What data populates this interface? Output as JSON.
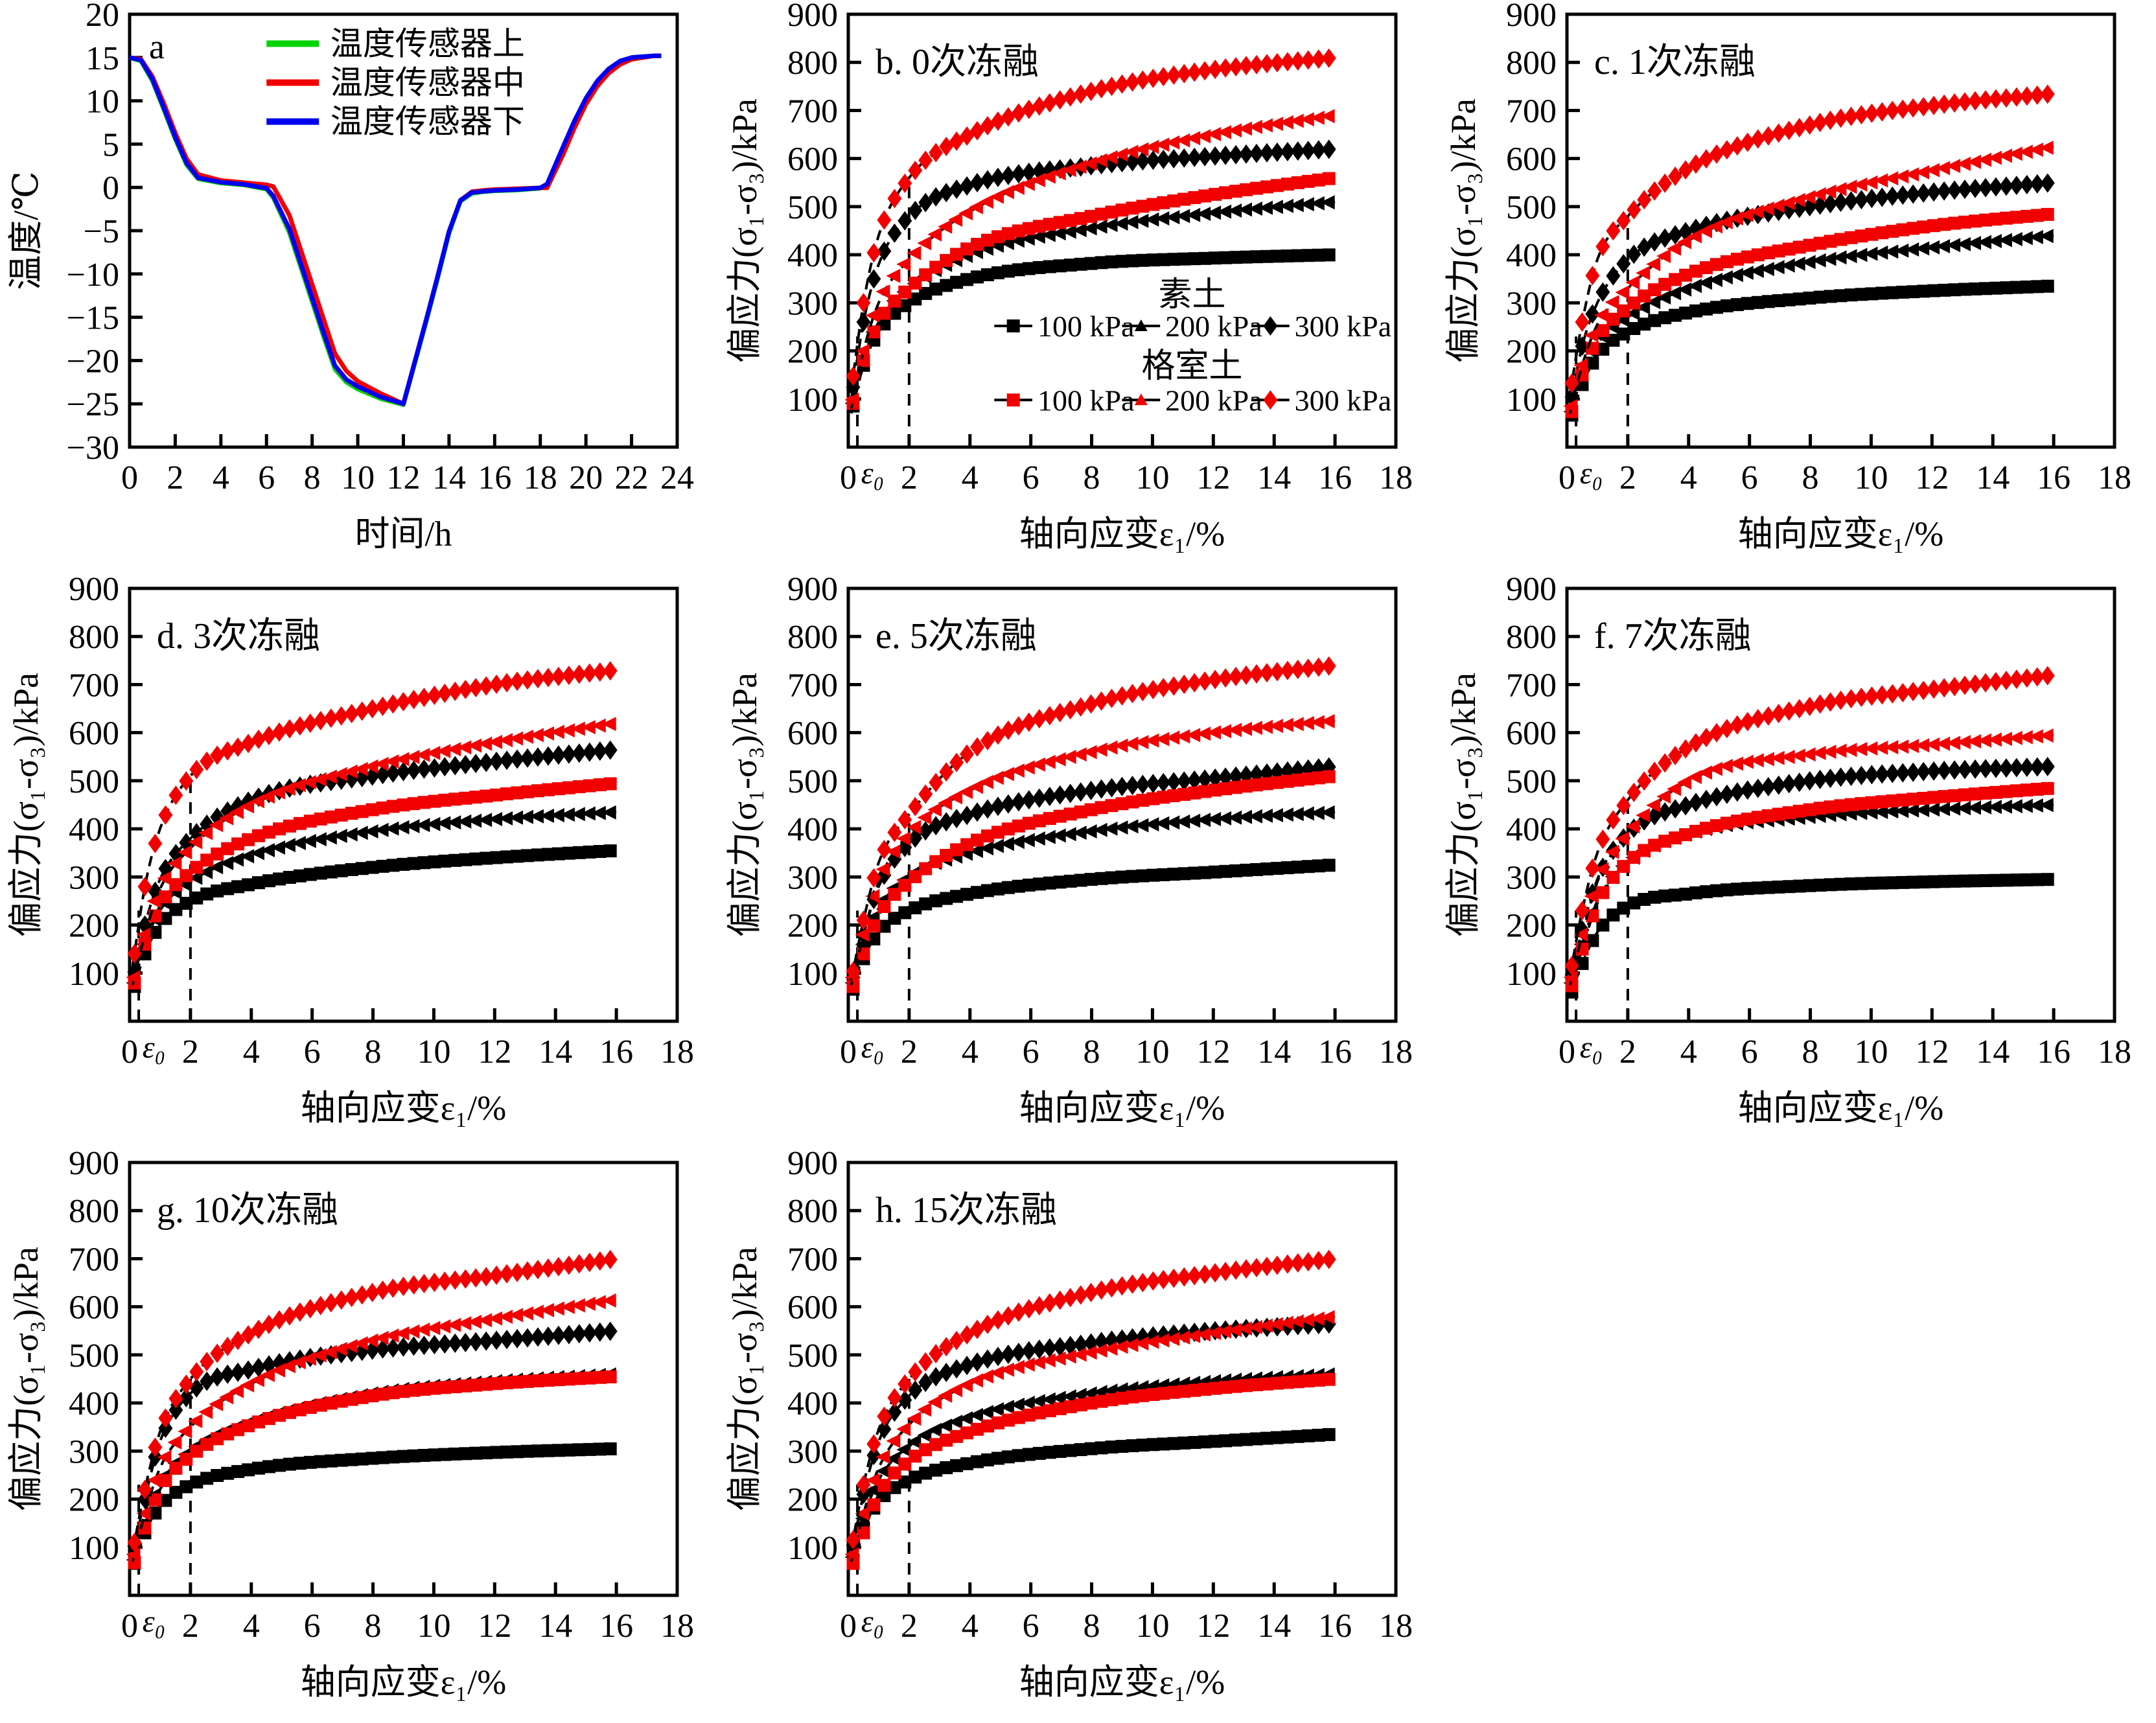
{
  "figure": {
    "background": "#ffffff",
    "ink": "#000000",
    "accent_red": "#f20000",
    "accent_green": "#00d400",
    "accent_blue": "#0000f0"
  },
  "stress_axes": {
    "xlabel": "轴向应变ε₁/%",
    "ylabel": "偏应力(σ₁-σ₃)/kPa",
    "xlim": [
      0,
      18
    ],
    "ylim": [
      0,
      900
    ],
    "xticks": [
      0,
      2,
      4,
      6,
      8,
      10,
      12,
      14,
      16,
      18
    ],
    "yticks": [
      100,
      200,
      300,
      400,
      500,
      600,
      700,
      800,
      900
    ],
    "x_samples": [
      0.1,
      0.5,
      1,
      2,
      4,
      8,
      12,
      16
    ],
    "guides": {
      "eps0_x": 0.3,
      "eps0_label": "ε₀",
      "eps0_top": 230,
      "eps2_x": 2
    },
    "series_style": [
      {
        "name": "素土 100 kPa",
        "marker": "square",
        "color": "#000000"
      },
      {
        "name": "素土 200 kPa",
        "marker": "tri",
        "color": "#000000"
      },
      {
        "name": "素土 300 kPa",
        "marker": "diamond",
        "color": "#000000"
      },
      {
        "name": "格室土 100 kPa",
        "marker": "square",
        "color": "#f20000"
      },
      {
        "name": "格室土 200 kPa",
        "marker": "tri",
        "color": "#f20000"
      },
      {
        "name": "格室土 300 kPa",
        "marker": "diamond",
        "color": "#f20000"
      }
    ],
    "legend_groups": [
      {
        "title": "素土",
        "color": "#000000",
        "entries": [
          {
            "label": "100 kPa",
            "marker": "square"
          },
          {
            "label": "200 kPa",
            "marker": "tri"
          },
          {
            "label": "300 kPa",
            "marker": "diamond"
          }
        ]
      },
      {
        "title": "格室土",
        "color": "#f20000",
        "entries": [
          {
            "label": "100 kPa",
            "marker": "square"
          },
          {
            "label": "200 kPa",
            "marker": "tri"
          },
          {
            "label": "300 kPa",
            "marker": "diamond"
          }
        ]
      }
    ]
  },
  "chart_data": [
    {
      "id": "a",
      "type": "line",
      "panel_label": "a",
      "xlabel": "时间/h",
      "ylabel": "温度/℃",
      "xlim": [
        0,
        24
      ],
      "ylim": [
        -30,
        20
      ],
      "xticks": [
        0,
        2,
        4,
        6,
        8,
        10,
        12,
        14,
        16,
        18,
        20,
        22,
        24
      ],
      "yticks": [
        -30,
        -25,
        -20,
        -15,
        -10,
        -5,
        0,
        5,
        10,
        15,
        20
      ],
      "legend": [
        {
          "label": "温度传感器上",
          "color": "#00d400"
        },
        {
          "label": "温度传感器中",
          "color": "#f20000"
        },
        {
          "label": "温度传感器下",
          "color": "#0000f0"
        }
      ],
      "x": [
        0,
        0.5,
        1,
        1.5,
        2,
        2.5,
        3,
        4,
        5,
        6,
        6.3,
        7,
        7.5,
        8,
        8.5,
        9,
        9.5,
        10,
        11,
        12,
        13,
        13.5,
        14,
        14.5,
        15,
        15.5,
        16,
        17,
        18,
        18.3,
        19,
        19.5,
        20,
        20.5,
        21,
        21.5,
        22,
        23,
        23.3
      ],
      "series": [
        {
          "name": "温度传感器上",
          "color": "#00d400",
          "values": [
            15,
            14.6,
            12.3,
            9,
            5.6,
            2.6,
            1.0,
            0.5,
            0.3,
            -0.2,
            -1.2,
            -5.2,
            -9.2,
            -13.2,
            -17.2,
            -21,
            -22.5,
            -23.3,
            -24.4,
            -25.1,
            -15.5,
            -10.5,
            -5.3,
            -1.6,
            -0.7,
            -0.5,
            -0.4,
            -0.3,
            -0.1,
            0.3,
            4.6,
            7.6,
            10.2,
            12.2,
            13.6,
            14.5,
            15,
            15.2,
            15.2
          ]
        },
        {
          "name": "温度传感器中",
          "color": "#f20000",
          "values": [
            15,
            14.8,
            12.8,
            9.7,
            6.3,
            3.3,
            1.5,
            0.8,
            0.55,
            0.3,
            0.1,
            -3.2,
            -7.2,
            -11.2,
            -15.2,
            -19.2,
            -21.2,
            -22.4,
            -23.8,
            -25,
            -15.3,
            -10.3,
            -5.1,
            -1.5,
            -0.5,
            -0.35,
            -0.25,
            -0.15,
            -0.05,
            -0.05,
            3.8,
            6.9,
            9.6,
            11.7,
            13.2,
            14.2,
            14.8,
            15.2,
            15.2
          ]
        },
        {
          "name": "温度传感器下",
          "color": "#0000f0",
          "values": [
            15,
            14.7,
            12.5,
            9.2,
            5.8,
            2.8,
            1.1,
            0.6,
            0.35,
            -0.1,
            -1.0,
            -4.8,
            -8.8,
            -12.8,
            -16.8,
            -20.6,
            -22.2,
            -23,
            -24.2,
            -25,
            -15.3,
            -10.3,
            -5.1,
            -1.5,
            -0.6,
            -0.45,
            -0.35,
            -0.25,
            -0.05,
            0.4,
            4.7,
            7.7,
            10.3,
            12.3,
            13.7,
            14.6,
            15,
            15.2,
            15.2
          ]
        }
      ]
    },
    {
      "id": "b",
      "type": "scatter-line",
      "panel_label": "b. 0次冻融",
      "show_legend": true,
      "series_values": [
        [
          70,
          170,
          240,
          300,
          350,
          382,
          393,
          400
        ],
        [
          75,
          180,
          260,
          330,
          400,
          455,
          487,
          510
        ],
        [
          100,
          260,
          380,
          480,
          545,
          585,
          605,
          620
        ],
        [
          75,
          180,
          260,
          330,
          415,
          480,
          525,
          560
        ],
        [
          80,
          200,
          300,
          390,
          490,
          590,
          650,
          690
        ],
        [
          120,
          300,
          440,
          560,
          650,
          740,
          785,
          810
        ]
      ]
    },
    {
      "id": "c",
      "type": "scatter-line",
      "panel_label": "c. 1次冻融",
      "show_legend": false,
      "series_values": [
        [
          55,
          130,
          190,
          240,
          280,
          310,
          325,
          335
        ],
        [
          60,
          150,
          215,
          270,
          330,
          385,
          415,
          440
        ],
        [
          85,
          210,
          300,
          390,
          450,
          500,
          530,
          550
        ],
        [
          60,
          150,
          225,
          290,
          360,
          420,
          460,
          485
        ],
        [
          70,
          170,
          255,
          330,
          430,
          520,
          575,
          625
        ],
        [
          110,
          260,
          390,
          480,
          580,
          670,
          710,
          735
        ]
      ]
    },
    {
      "id": "d",
      "type": "scatter-line",
      "panel_label": "d. 3次冻融",
      "show_legend": false,
      "series_values": [
        [
          60,
          140,
          200,
          250,
          285,
          320,
          340,
          355
        ],
        [
          65,
          160,
          230,
          290,
          345,
          395,
          420,
          435
        ],
        [
          85,
          200,
          295,
          380,
          460,
          510,
          540,
          565
        ],
        [
          65,
          160,
          240,
          310,
          380,
          440,
          470,
          495
        ],
        [
          75,
          180,
          275,
          360,
          450,
          530,
          580,
          620
        ],
        [
          115,
          280,
          400,
          510,
          580,
          650,
          700,
          730
        ]
      ]
    },
    {
      "id": "e",
      "type": "scatter-line",
      "panel_label": "e. 5次冻融",
      "show_legend": false,
      "series_values": [
        [
          55,
          130,
          185,
          230,
          265,
          295,
          310,
          325
        ],
        [
          65,
          160,
          235,
          300,
          350,
          395,
          420,
          435
        ],
        [
          75,
          180,
          280,
          370,
          430,
          480,
          505,
          530
        ],
        [
          60,
          140,
          220,
          290,
          370,
          440,
          480,
          510
        ],
        [
          75,
          180,
          290,
          390,
          480,
          560,
          600,
          625
        ],
        [
          85,
          210,
          330,
          430,
          560,
          660,
          710,
          740
        ]
      ]
    },
    {
      "id": "f",
      "type": "scatter-line",
      "panel_label": "f. 7次冻融",
      "show_legend": false,
      "series_values": [
        [
          50,
          120,
          185,
          240,
          265,
          282,
          290,
          295
        ],
        [
          65,
          160,
          250,
          330,
          390,
          425,
          440,
          450
        ],
        [
          80,
          190,
          295,
          390,
          450,
          500,
          520,
          530
        ],
        [
          60,
          150,
          245,
          330,
          390,
          440,
          465,
          485
        ],
        [
          75,
          180,
          290,
          390,
          500,
          555,
          575,
          595
        ],
        [
          95,
          230,
          350,
          460,
          570,
          655,
          690,
          720
        ]
      ]
    },
    {
      "id": "g",
      "type": "scatter-line",
      "panel_label": "g. 10次冻融",
      "show_legend": false,
      "series_values": [
        [
          55,
          130,
          185,
          230,
          262,
          285,
          297,
          305
        ],
        [
          60,
          150,
          230,
          300,
          360,
          420,
          445,
          460
        ],
        [
          85,
          200,
          320,
          420,
          470,
          510,
          530,
          550
        ],
        [
          55,
          140,
          220,
          290,
          355,
          415,
          440,
          455
        ],
        [
          70,
          170,
          265,
          350,
          440,
          530,
          575,
          615
        ],
        [
          90,
          220,
          340,
          450,
          545,
          630,
          665,
          700
        ]
      ]
    },
    {
      "id": "h",
      "type": "scatter-line",
      "panel_label": "h. 15次冻融",
      "show_legend": false,
      "series_values": [
        [
          60,
          140,
          195,
          240,
          275,
          305,
          320,
          335
        ],
        [
          65,
          160,
          240,
          310,
          370,
          420,
          445,
          460
        ],
        [
          85,
          210,
          320,
          415,
          480,
          525,
          550,
          565
        ],
        [
          55,
          130,
          210,
          280,
          340,
          400,
          430,
          450
        ],
        [
          70,
          170,
          265,
          355,
          440,
          505,
          545,
          580
        ],
        [
          95,
          230,
          345,
          450,
          545,
          630,
          670,
          700
        ]
      ]
    }
  ]
}
